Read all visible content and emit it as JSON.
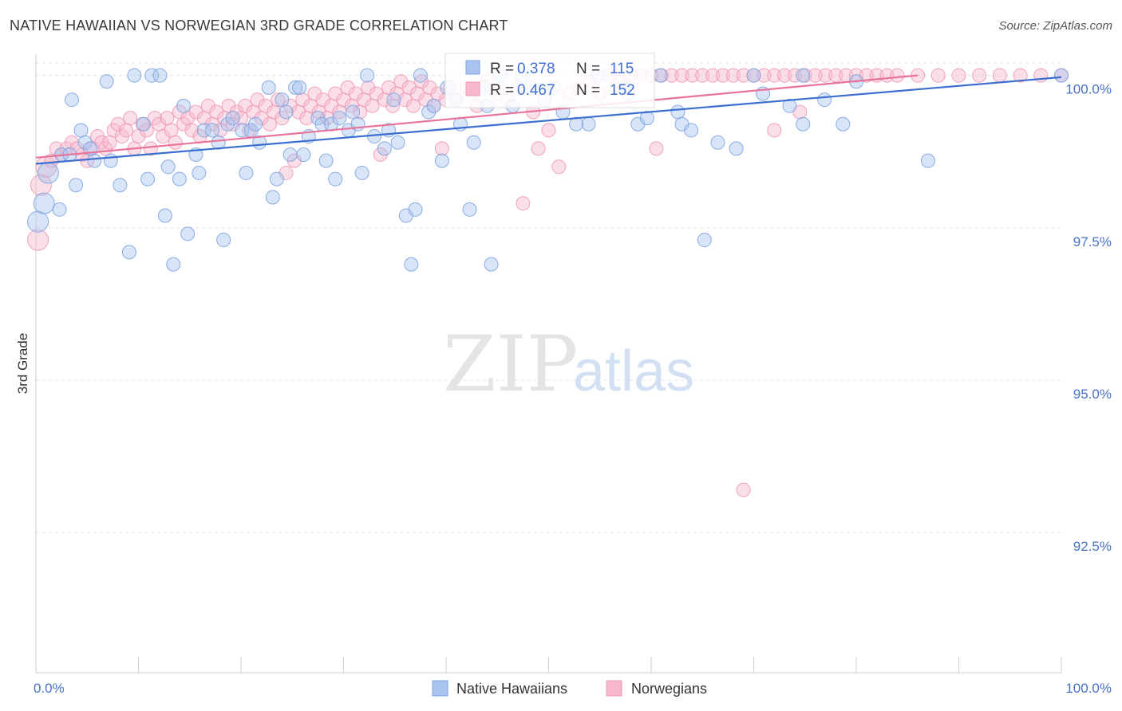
{
  "title": "NATIVE HAWAIIAN VS NORWEGIAN 3RD GRADE CORRELATION CHART",
  "source": "Source: ZipAtlas.com",
  "watermark": {
    "zip": "ZIP",
    "atlas": "atlas"
  },
  "colors": {
    "blue_fill": "#a8c4ee",
    "blue_stroke": "#7ea4e0",
    "blue_line": "#3a6fcf",
    "pink_fill": "#f6b8cb",
    "pink_stroke": "#ee9ab4",
    "pink_line": "#e8739b",
    "tick_text": "#4a72c4",
    "grid": "#e3e3e3"
  },
  "chart_data": {
    "type": "scatter",
    "title": "NATIVE HAWAIIAN VS NORWEGIAN 3RD GRADE CORRELATION CHART",
    "xlabel": "",
    "ylabel": "3rd Grade",
    "xlim": [
      0,
      100
    ],
    "ylim": [
      90.2,
      100.4
    ],
    "x_tick_labels": [
      "0.0%",
      "100.0%"
    ],
    "y_ticks": [
      92.5,
      95.0,
      97.5,
      100.0
    ],
    "y_tick_labels": [
      "92.5%",
      "95.0%",
      "97.5%",
      "100.0%"
    ],
    "grid": "horizontal dashed",
    "legend_position": "bottom-center",
    "stats_box_position": "top-center",
    "series": [
      {
        "name": "Native Hawaiians",
        "color": "#a8c4ee",
        "R": "0.378",
        "N": "115",
        "r_label": "R = ",
        "n_label": "N = ",
        "trend": [
          [
            0,
            98.55
          ],
          [
            100,
            99.97
          ]
        ],
        "points": [
          [
            0.2,
            97.6
          ],
          [
            0.8,
            97.9
          ],
          [
            1.2,
            98.4
          ],
          [
            2.3,
            97.8
          ],
          [
            2.5,
            98.7
          ],
          [
            3.3,
            98.7
          ],
          [
            3.5,
            99.6
          ],
          [
            3.9,
            98.2
          ],
          [
            4.4,
            99.1
          ],
          [
            4.8,
            98.9
          ],
          [
            5.3,
            98.8
          ],
          [
            5.7,
            98.6
          ],
          [
            6.9,
            99.9
          ],
          [
            7.3,
            98.6
          ],
          [
            8.2,
            98.2
          ],
          [
            9.1,
            97.1
          ],
          [
            9.6,
            100.0
          ],
          [
            10.5,
            99.2
          ],
          [
            10.9,
            98.3
          ],
          [
            11.3,
            100.0
          ],
          [
            12.1,
            100.0
          ],
          [
            12.6,
            97.7
          ],
          [
            12.9,
            98.5
          ],
          [
            13.4,
            96.9
          ],
          [
            14.0,
            98.3
          ],
          [
            14.4,
            99.5
          ],
          [
            14.8,
            97.4
          ],
          [
            15.6,
            98.7
          ],
          [
            15.9,
            98.4
          ],
          [
            16.4,
            99.1
          ],
          [
            17.2,
            99.1
          ],
          [
            17.8,
            98.9
          ],
          [
            18.3,
            97.3
          ],
          [
            18.7,
            99.2
          ],
          [
            19.2,
            99.3
          ],
          [
            20.1,
            99.1
          ],
          [
            20.5,
            98.4
          ],
          [
            21.0,
            99.1
          ],
          [
            21.4,
            99.2
          ],
          [
            21.8,
            98.9
          ],
          [
            22.7,
            99.8
          ],
          [
            23.1,
            98.0
          ],
          [
            23.5,
            98.3
          ],
          [
            24.0,
            99.6
          ],
          [
            24.4,
            99.4
          ],
          [
            24.8,
            98.7
          ],
          [
            25.3,
            99.8
          ],
          [
            25.7,
            99.8
          ],
          [
            26.1,
            98.7
          ],
          [
            26.6,
            99.0
          ],
          [
            27.5,
            99.3
          ],
          [
            27.9,
            99.2
          ],
          [
            28.3,
            98.6
          ],
          [
            28.8,
            99.2
          ],
          [
            29.2,
            98.3
          ],
          [
            29.6,
            99.3
          ],
          [
            30.5,
            99.1
          ],
          [
            30.9,
            99.4
          ],
          [
            31.4,
            99.2
          ],
          [
            31.8,
            98.4
          ],
          [
            32.3,
            100.0
          ],
          [
            33.0,
            99.0
          ],
          [
            34.0,
            98.8
          ],
          [
            34.4,
            99.1
          ],
          [
            34.9,
            99.6
          ],
          [
            35.3,
            98.9
          ],
          [
            36.1,
            97.7
          ],
          [
            36.6,
            96.9
          ],
          [
            37.0,
            97.8
          ],
          [
            37.5,
            100.0
          ],
          [
            38.3,
            99.4
          ],
          [
            38.8,
            99.5
          ],
          [
            39.6,
            98.6
          ],
          [
            40.1,
            99.8
          ],
          [
            41.0,
            99.6
          ],
          [
            41.4,
            99.2
          ],
          [
            42.3,
            97.8
          ],
          [
            42.7,
            98.9
          ],
          [
            43.6,
            99.8
          ],
          [
            44.0,
            99.5
          ],
          [
            44.4,
            96.9
          ],
          [
            45.3,
            100.0
          ],
          [
            46.5,
            99.5
          ],
          [
            47.4,
            100.0
          ],
          [
            48.3,
            99.8
          ],
          [
            49.6,
            99.6
          ],
          [
            50.5,
            99.8
          ],
          [
            51.4,
            99.4
          ],
          [
            52.7,
            99.2
          ],
          [
            53.9,
            99.2
          ],
          [
            54.8,
            100.0
          ],
          [
            57.4,
            99.8
          ],
          [
            57.8,
            99.7
          ],
          [
            58.7,
            99.2
          ],
          [
            59.6,
            99.3
          ],
          [
            60.9,
            100.0
          ],
          [
            62.6,
            99.4
          ],
          [
            63.0,
            99.2
          ],
          [
            63.9,
            99.1
          ],
          [
            65.2,
            97.3
          ],
          [
            66.5,
            98.9
          ],
          [
            68.3,
            98.8
          ],
          [
            70.0,
            100.0
          ],
          [
            70.9,
            99.7
          ],
          [
            73.5,
            99.5
          ],
          [
            74.8,
            99.2
          ],
          [
            74.8,
            100.0
          ],
          [
            76.9,
            99.6
          ],
          [
            78.7,
            99.2
          ],
          [
            80.0,
            99.9
          ],
          [
            87.0,
            98.6
          ],
          [
            100.0,
            100.0
          ]
        ]
      },
      {
        "name": "Norwegians",
        "color": "#f6b8cb",
        "R": "0.467",
        "N": "152",
        "r_label": "R = ",
        "n_label": "N = ",
        "trend": [
          [
            0,
            98.65
          ],
          [
            86,
            100.0
          ]
        ],
        "points": [
          [
            0.2,
            97.3
          ],
          [
            0.5,
            98.2
          ],
          [
            1.0,
            98.5
          ],
          [
            1.5,
            98.6
          ],
          [
            2.0,
            98.8
          ],
          [
            2.5,
            98.7
          ],
          [
            3.0,
            98.8
          ],
          [
            3.5,
            98.9
          ],
          [
            4.0,
            98.8
          ],
          [
            4.5,
            98.7
          ],
          [
            5.0,
            98.6
          ],
          [
            5.5,
            98.8
          ],
          [
            6.0,
            99.0
          ],
          [
            6.4,
            98.9
          ],
          [
            6.8,
            98.8
          ],
          [
            7.2,
            98.9
          ],
          [
            7.6,
            99.1
          ],
          [
            8.0,
            99.2
          ],
          [
            8.4,
            99.0
          ],
          [
            8.8,
            99.1
          ],
          [
            9.2,
            99.3
          ],
          [
            9.6,
            98.8
          ],
          [
            10.0,
            99.0
          ],
          [
            10.4,
            99.2
          ],
          [
            10.8,
            99.1
          ],
          [
            11.2,
            98.8
          ],
          [
            11.6,
            99.3
          ],
          [
            12.0,
            99.2
          ],
          [
            12.4,
            99.0
          ],
          [
            12.8,
            99.3
          ],
          [
            13.2,
            99.1
          ],
          [
            13.6,
            98.9
          ],
          [
            14.0,
            99.4
          ],
          [
            14.4,
            99.2
          ],
          [
            14.8,
            99.3
          ],
          [
            15.2,
            99.1
          ],
          [
            15.6,
            99.4
          ],
          [
            16.0,
            99.0
          ],
          [
            16.4,
            99.3
          ],
          [
            16.8,
            99.5
          ],
          [
            17.2,
            99.2
          ],
          [
            17.6,
            99.4
          ],
          [
            18.0,
            99.1
          ],
          [
            18.4,
            99.3
          ],
          [
            18.8,
            99.5
          ],
          [
            19.2,
            99.2
          ],
          [
            19.6,
            99.4
          ],
          [
            20.0,
            99.3
          ],
          [
            20.4,
            99.5
          ],
          [
            20.8,
            99.1
          ],
          [
            21.2,
            99.4
          ],
          [
            21.6,
            99.6
          ],
          [
            22.0,
            99.3
          ],
          [
            22.4,
            99.5
          ],
          [
            22.8,
            99.2
          ],
          [
            23.2,
            99.4
          ],
          [
            23.6,
            99.6
          ],
          [
            24.0,
            99.3
          ],
          [
            24.4,
            98.4
          ],
          [
            24.8,
            99.5
          ],
          [
            25.2,
            98.6
          ],
          [
            25.6,
            99.4
          ],
          [
            26.0,
            99.6
          ],
          [
            26.4,
            99.3
          ],
          [
            26.8,
            99.5
          ],
          [
            27.2,
            99.7
          ],
          [
            27.6,
            99.4
          ],
          [
            28.0,
            99.6
          ],
          [
            28.4,
            99.3
          ],
          [
            28.8,
            99.5
          ],
          [
            29.2,
            99.7
          ],
          [
            29.6,
            99.4
          ],
          [
            30.0,
            99.6
          ],
          [
            30.4,
            99.8
          ],
          [
            30.8,
            99.5
          ],
          [
            31.2,
            99.7
          ],
          [
            31.6,
            99.4
          ],
          [
            32.0,
            99.6
          ],
          [
            32.4,
            99.8
          ],
          [
            32.8,
            99.5
          ],
          [
            33.2,
            99.7
          ],
          [
            33.6,
            98.7
          ],
          [
            34.0,
            99.6
          ],
          [
            34.4,
            99.8
          ],
          [
            34.8,
            99.5
          ],
          [
            35.2,
            99.7
          ],
          [
            35.6,
            99.9
          ],
          [
            36.0,
            99.6
          ],
          [
            36.4,
            99.8
          ],
          [
            36.8,
            99.5
          ],
          [
            37.2,
            99.7
          ],
          [
            37.6,
            99.9
          ],
          [
            38.0,
            99.6
          ],
          [
            38.4,
            99.8
          ],
          [
            38.8,
            99.5
          ],
          [
            39.2,
            99.7
          ],
          [
            39.6,
            98.8
          ],
          [
            40.0,
            99.6
          ],
          [
            40.4,
            99.8
          ],
          [
            41.0,
            99.6
          ],
          [
            42.0,
            99.8
          ],
          [
            43.0,
            99.5
          ],
          [
            44.0,
            99.9
          ],
          [
            45.0,
            99.7
          ],
          [
            46.0,
            99.6
          ],
          [
            47.0,
            99.8
          ],
          [
            47.5,
            97.9
          ],
          [
            48.5,
            99.4
          ],
          [
            49.0,
            98.8
          ],
          [
            50.0,
            99.1
          ],
          [
            51.0,
            98.5
          ],
          [
            52.0,
            99.7
          ],
          [
            53.0,
            99.8
          ],
          [
            54.0,
            99.9
          ],
          [
            55.0,
            99.7
          ],
          [
            56.0,
            100.0
          ],
          [
            57.0,
            99.9
          ],
          [
            58.0,
            100.0
          ],
          [
            59.0,
            100.0
          ],
          [
            60.0,
            100.0
          ],
          [
            61.0,
            100.0
          ],
          [
            62.0,
            100.0
          ],
          [
            63.0,
            100.0
          ],
          [
            64.0,
            100.0
          ],
          [
            65.0,
            100.0
          ],
          [
            66.0,
            100.0
          ],
          [
            67.0,
            100.0
          ],
          [
            68.0,
            100.0
          ],
          [
            69.0,
            100.0
          ],
          [
            70.0,
            100.0
          ],
          [
            71.0,
            100.0
          ],
          [
            72.0,
            100.0
          ],
          [
            73.0,
            100.0
          ],
          [
            74.0,
            100.0
          ],
          [
            75.0,
            100.0
          ],
          [
            76.0,
            100.0
          ],
          [
            77.0,
            100.0
          ],
          [
            78.0,
            100.0
          ],
          [
            79.0,
            100.0
          ],
          [
            80.0,
            100.0
          ],
          [
            81.0,
            100.0
          ],
          [
            82.0,
            100.0
          ],
          [
            83.0,
            100.0
          ],
          [
            84.0,
            100.0
          ],
          [
            86.0,
            100.0
          ],
          [
            88.0,
            100.0
          ],
          [
            90.0,
            100.0
          ],
          [
            92.0,
            100.0
          ],
          [
            94.0,
            100.0
          ],
          [
            96.0,
            100.0
          ],
          [
            98.0,
            100.0
          ],
          [
            100.0,
            100.0
          ],
          [
            60.5,
            98.8
          ],
          [
            69.0,
            93.2
          ],
          [
            72.0,
            99.1
          ],
          [
            74.5,
            99.4
          ]
        ]
      }
    ]
  }
}
